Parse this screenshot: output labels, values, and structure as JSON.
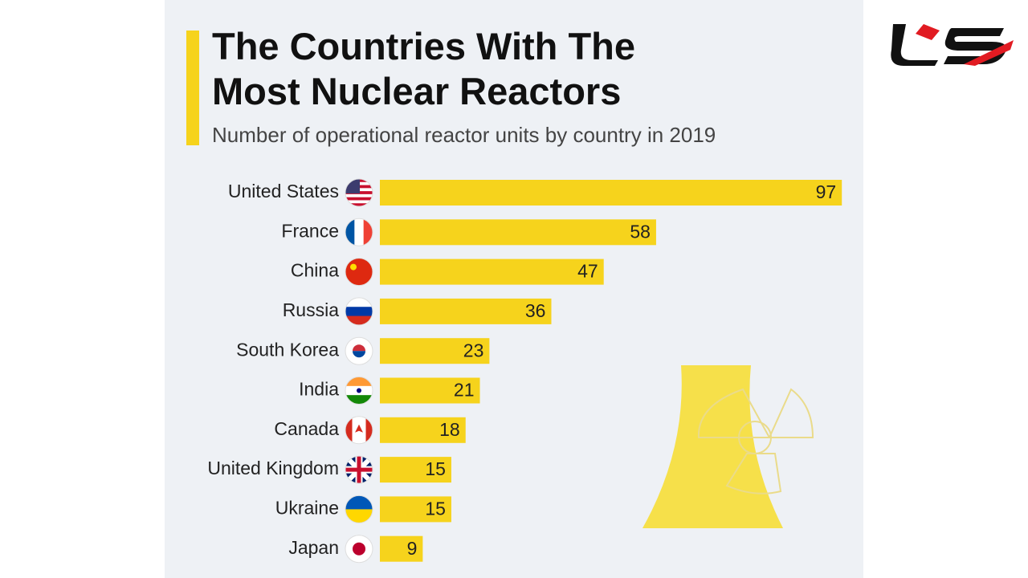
{
  "chart_data": {
    "type": "bar",
    "orientation": "horizontal",
    "title": "The Countries With The Most Nuclear Reactors",
    "subtitle": "Number of operational reactor units by country in 2019",
    "categories": [
      "United States",
      "France",
      "China",
      "Russia",
      "South Korea",
      "India",
      "Canada",
      "United Kingdom",
      "Ukraine",
      "Japan"
    ],
    "values": [
      97,
      58,
      47,
      36,
      23,
      21,
      18,
      15,
      15,
      9
    ],
    "color": "#f6d31c"
  }
}
